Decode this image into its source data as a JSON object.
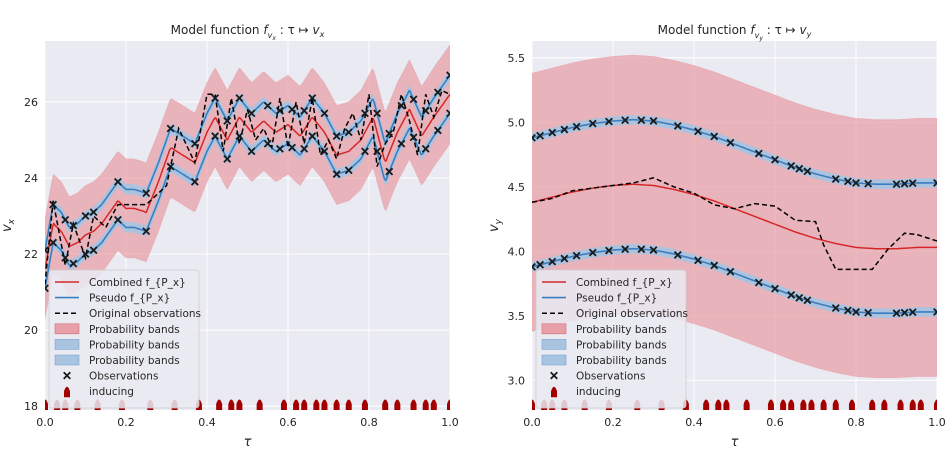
{
  "chart_data": [
    {
      "type": "line",
      "title": "Model function f_{v_x} : τ ↦ v_x",
      "title_parts": [
        "Model function ",
        "f",
        "v",
        "x",
        " : τ ↦ ",
        "v",
        "x"
      ],
      "xlabel": "τ",
      "ylabel": "v",
      "ylabel_sub": "x",
      "xlim": [
        0.0,
        1.0
      ],
      "ylim": [
        17.9,
        27.6
      ],
      "xticks": [
        "0.0",
        "0.2",
        "0.4",
        "0.6",
        "0.8",
        "1.0"
      ],
      "yticks": [
        "18",
        "20",
        "22",
        "24",
        "26"
      ],
      "grid": true,
      "legend_position": "lower-left",
      "colors": {
        "combined": "#d62728",
        "pseudo": "#3a7ebf",
        "red_band": "#e8a0a8",
        "blue_band": "#a8c4e0",
        "original": "#000000",
        "inducing": "#a40000"
      },
      "series": [
        {
          "name": "Combined f_{P_x}",
          "role": "combined",
          "x": [
            0,
            0.02,
            0.04,
            0.06,
            0.08,
            0.1,
            0.12,
            0.14,
            0.16,
            0.18,
            0.2,
            0.22,
            0.25,
            0.28,
            0.31,
            0.34,
            0.37,
            0.4,
            0.42,
            0.45,
            0.48,
            0.51,
            0.54,
            0.57,
            0.6,
            0.63,
            0.66,
            0.69,
            0.72,
            0.75,
            0.78,
            0.81,
            0.84,
            0.87,
            0.9,
            0.93,
            0.96,
            1.0
          ],
          "y": [
            21.6,
            22.8,
            22.6,
            22.2,
            22.3,
            22.5,
            22.6,
            22.8,
            23.1,
            23.4,
            23.2,
            23.2,
            23.1,
            23.9,
            24.8,
            24.6,
            24.4,
            25.2,
            25.6,
            25.0,
            25.6,
            25.2,
            25.5,
            25.2,
            25.4,
            25.1,
            25.6,
            25.2,
            24.6,
            24.7,
            25.0,
            25.6,
            24.4,
            25.2,
            25.8,
            25.1,
            25.6,
            26.2
          ]
        },
        {
          "name": "Pseudo f_{P_x}",
          "role": "pseudo",
          "offset": 0.5
        },
        {
          "name": "Original observations",
          "role": "original",
          "x": [
            0,
            0.02,
            0.05,
            0.07,
            0.1,
            0.12,
            0.15,
            0.18,
            0.2,
            0.25,
            0.3,
            0.33,
            0.37,
            0.4,
            0.42,
            0.44,
            0.46,
            0.48,
            0.5,
            0.52,
            0.54,
            0.56,
            0.58,
            0.6,
            0.62,
            0.64,
            0.66,
            0.68,
            0.7,
            0.72,
            0.74,
            0.76,
            0.78,
            0.8,
            0.82,
            0.84,
            0.86,
            0.88,
            0.9,
            0.92,
            0.94,
            0.96,
            0.98,
            1.0
          ],
          "y": [
            21.2,
            23.4,
            21.7,
            22.8,
            21.9,
            23.0,
            22.7,
            23.3,
            23.3,
            23.3,
            23.8,
            25.3,
            24.4,
            26.2,
            26.2,
            24.7,
            26.1,
            24.9,
            25.8,
            25.0,
            25.3,
            24.8,
            26.1,
            24.8,
            26.0,
            24.9,
            26.1,
            24.6,
            25.0,
            24.5,
            25.3,
            25.7,
            25.0,
            26.2,
            24.3,
            24.9,
            25.2,
            26.2,
            25.5,
            24.6,
            26.2,
            25.6,
            26.3,
            26.2
          ]
        },
        {
          "name": "Probability bands",
          "role": "red_band",
          "width": 1.3
        },
        {
          "name": "Probability bands",
          "role": "blue_band_upper",
          "width": 0.13
        },
        {
          "name": "Probability bands",
          "role": "blue_band_lower",
          "width": 0.13
        },
        {
          "name": "Observations",
          "role": "observations",
          "x": [
            0,
            0.02,
            0.05,
            0.07,
            0.1,
            0.12,
            0.18,
            0.25,
            0.31,
            0.37,
            0.42,
            0.45,
            0.48,
            0.51,
            0.55,
            0.58,
            0.61,
            0.64,
            0.66,
            0.69,
            0.72,
            0.75,
            0.79,
            0.82,
            0.85,
            0.88,
            0.91,
            0.94,
            0.97,
            1.0
          ]
        },
        {
          "name": "inducing",
          "role": "inducing",
          "x": [
            0,
            0.03,
            0.05,
            0.08,
            0.13,
            0.19,
            0.26,
            0.32,
            0.38,
            0.43,
            0.46,
            0.48,
            0.53,
            0.59,
            0.62,
            0.64,
            0.67,
            0.69,
            0.72,
            0.75,
            0.79,
            0.84,
            0.87,
            0.91,
            0.94,
            0.96,
            1.0
          ]
        }
      ]
    },
    {
      "type": "line",
      "title": "Model function f_{v_y} : τ ↦ v_y",
      "title_parts": [
        "Model function ",
        "f",
        "v",
        "y",
        " : τ ↦ ",
        "v",
        "y"
      ],
      "xlabel": "τ",
      "ylabel": "v",
      "ylabel_sub": "y",
      "xlim": [
        0.0,
        1.0
      ],
      "ylim": [
        2.77,
        5.63
      ],
      "xticks": [
        "0.0",
        "0.2",
        "0.4",
        "0.6",
        "0.8",
        "1.0"
      ],
      "yticks": [
        "3.0",
        "3.5",
        "4.0",
        "4.5",
        "5.0",
        "5.5"
      ],
      "grid": true,
      "legend_position": "lower-left",
      "colors": {
        "combined": "#d62728",
        "pseudo": "#3a7ebf",
        "red_band": "#e8a0a8",
        "blue_band": "#a8c4e0",
        "original": "#000000",
        "inducing": "#a40000"
      },
      "series": [
        {
          "name": "Combined f_{P_x}",
          "role": "combined",
          "x": [
            0,
            0.05,
            0.1,
            0.15,
            0.2,
            0.25,
            0.3,
            0.35,
            0.4,
            0.45,
            0.5,
            0.55,
            0.6,
            0.65,
            0.7,
            0.75,
            0.8,
            0.85,
            0.9,
            0.95,
            1.0
          ],
          "y": [
            4.38,
            4.42,
            4.46,
            4.49,
            4.51,
            4.52,
            4.51,
            4.48,
            4.44,
            4.39,
            4.33,
            4.27,
            4.21,
            4.15,
            4.1,
            4.06,
            4.03,
            4.02,
            4.02,
            4.03,
            4.03
          ]
        },
        {
          "name": "Pseudo f_{P_x}",
          "role": "pseudo",
          "offset": 0.5
        },
        {
          "name": "Original observations",
          "role": "original",
          "x": [
            0,
            0.05,
            0.1,
            0.15,
            0.2,
            0.25,
            0.3,
            0.35,
            0.4,
            0.45,
            0.5,
            0.55,
            0.6,
            0.65,
            0.7,
            0.72,
            0.75,
            0.8,
            0.84,
            0.88,
            0.92,
            0.95,
            1.0
          ],
          "y": [
            4.38,
            4.41,
            4.47,
            4.49,
            4.51,
            4.53,
            4.57,
            4.5,
            4.45,
            4.36,
            4.33,
            4.37,
            4.35,
            4.24,
            4.23,
            4.05,
            3.86,
            3.86,
            3.86,
            4.02,
            4.14,
            4.13,
            4.08
          ]
        },
        {
          "name": "Probability bands",
          "role": "red_band",
          "width": 1.0
        },
        {
          "name": "Probability bands",
          "role": "blue_band_upper",
          "width": 0.035
        },
        {
          "name": "Probability bands",
          "role": "blue_band_lower",
          "width": 0.035
        },
        {
          "name": "Observations",
          "role": "observations",
          "x": [
            0,
            0.02,
            0.05,
            0.08,
            0.11,
            0.15,
            0.19,
            0.23,
            0.27,
            0.3,
            0.36,
            0.41,
            0.45,
            0.49,
            0.56,
            0.6,
            0.64,
            0.66,
            0.68,
            0.75,
            0.78,
            0.8,
            0.83,
            0.9,
            0.92,
            0.94,
            1.0
          ]
        },
        {
          "name": "inducing",
          "role": "inducing",
          "x": [
            0,
            0.03,
            0.05,
            0.08,
            0.13,
            0.19,
            0.26,
            0.32,
            0.38,
            0.43,
            0.46,
            0.48,
            0.53,
            0.59,
            0.62,
            0.64,
            0.67,
            0.69,
            0.72,
            0.75,
            0.79,
            0.84,
            0.87,
            0.91,
            0.94,
            0.96,
            1.0
          ]
        }
      ]
    }
  ]
}
